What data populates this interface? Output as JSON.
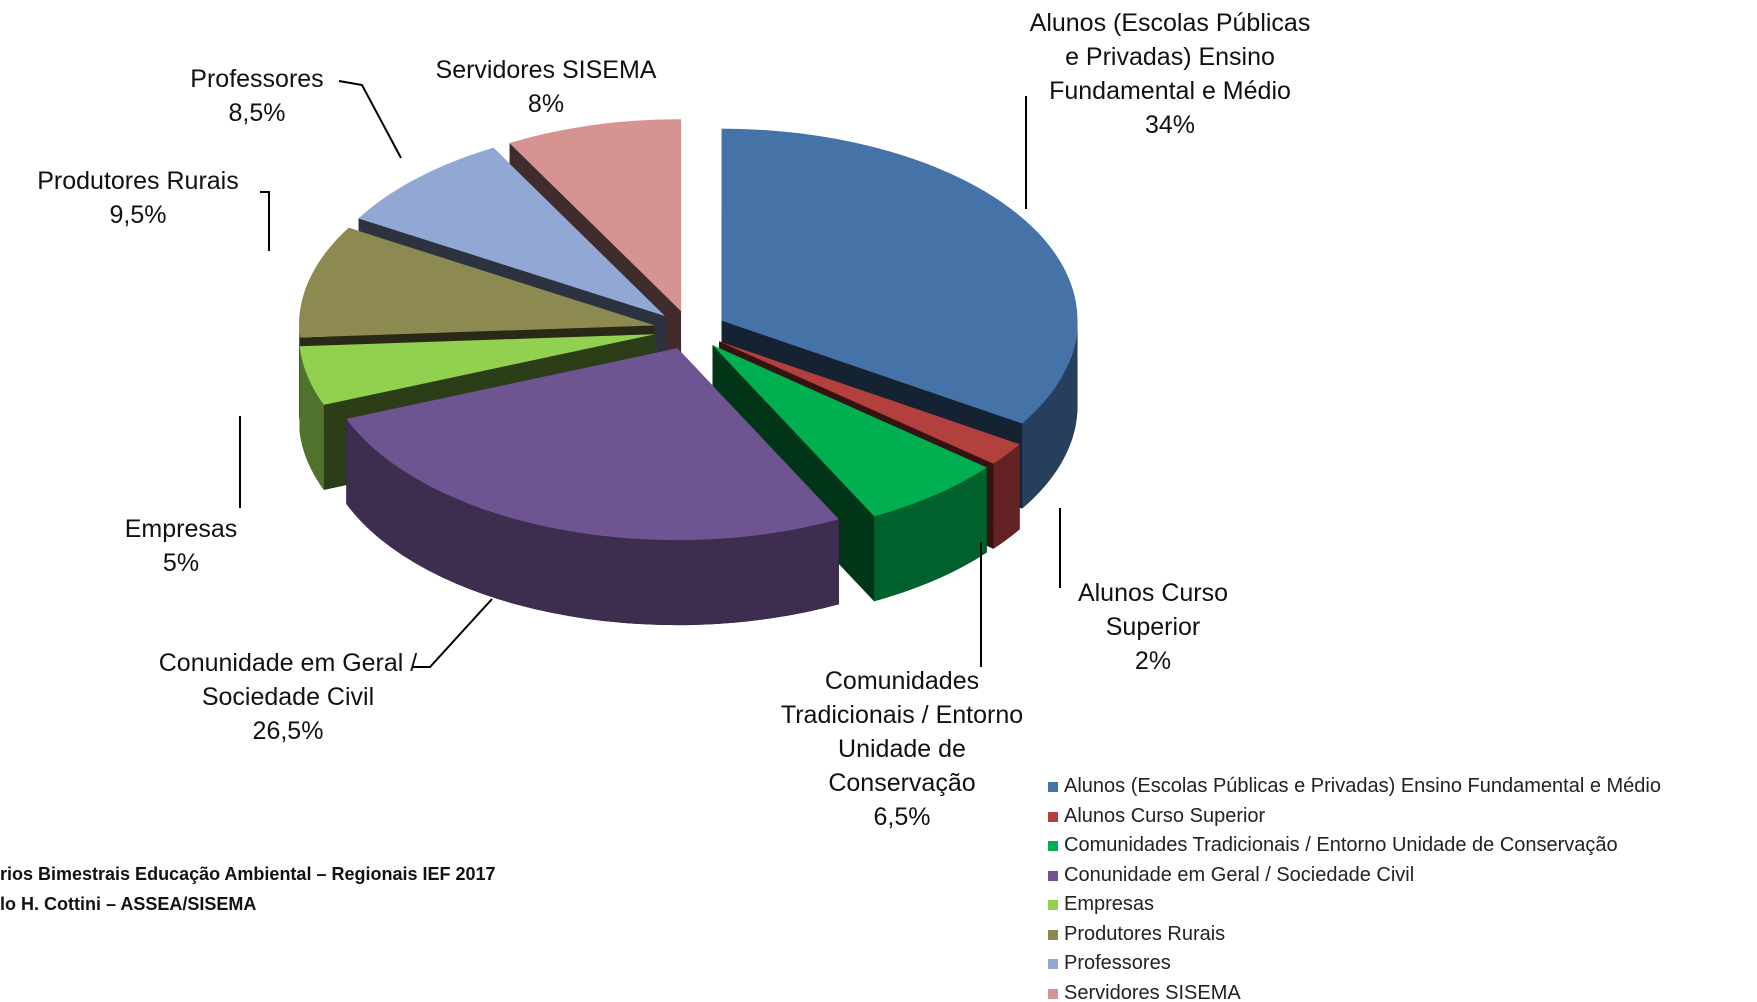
{
  "chart_data": {
    "type": "pie",
    "categories": [
      "Alunos (Escolas Públicas e Privadas) Ensino Fundamental e Médio",
      "Alunos Curso Superior",
      "Comunidades Tradicionais / Entorno Unidade de Conservação",
      "Conunidade em Geral / Sociedade Civil",
      "Empresas",
      "Produtores Rurais",
      "Professores",
      "Servidores SISEMA"
    ],
    "values": [
      34,
      2,
      6.5,
      26.5,
      5,
      9.5,
      8.5,
      8
    ],
    "value_labels": [
      "34%",
      "2%",
      "6,5%",
      "26,5%",
      "5%",
      "9,5%",
      "8,5%",
      "8%"
    ],
    "colors": [
      "#4572a7",
      "#b2403d",
      "#00b050",
      "#6e5490",
      "#92d050",
      "#8c8a50",
      "#91a8d4",
      "#d59392"
    ],
    "legend": "bottom-right",
    "source": [
      "rios Bimestrais Educação Ambiental – Regionais IEF 2017",
      "lo H. Cottini – ASSEA/SISEMA"
    ]
  }
}
